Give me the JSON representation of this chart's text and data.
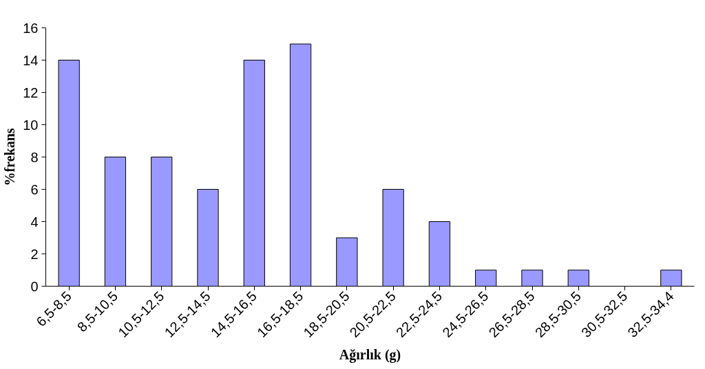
{
  "chart_data": {
    "type": "bar",
    "xlabel": "Ağırlık (g)",
    "ylabel": "%frekans",
    "categories": [
      "6,5-8,5",
      "8,5-10,5",
      "10,5-12,5",
      "12,5-14,5",
      "14,5-16,5",
      "16,5-18,5",
      "18,5-20,5",
      "20,5-22,5",
      "22,5-24,5",
      "24,5-26,5",
      "26,5-28,5",
      "28,5-30,5",
      "30,5-32,5",
      "32,5-34,4"
    ],
    "values": [
      14,
      8,
      8,
      6,
      14,
      15,
      3,
      6,
      4,
      1,
      1,
      1,
      0,
      1
    ],
    "color": "#9999ff",
    "ylim": [
      0,
      16
    ],
    "yticks": [
      0,
      2,
      4,
      6,
      8,
      10,
      12,
      14,
      16
    ],
    "grid": false
  }
}
